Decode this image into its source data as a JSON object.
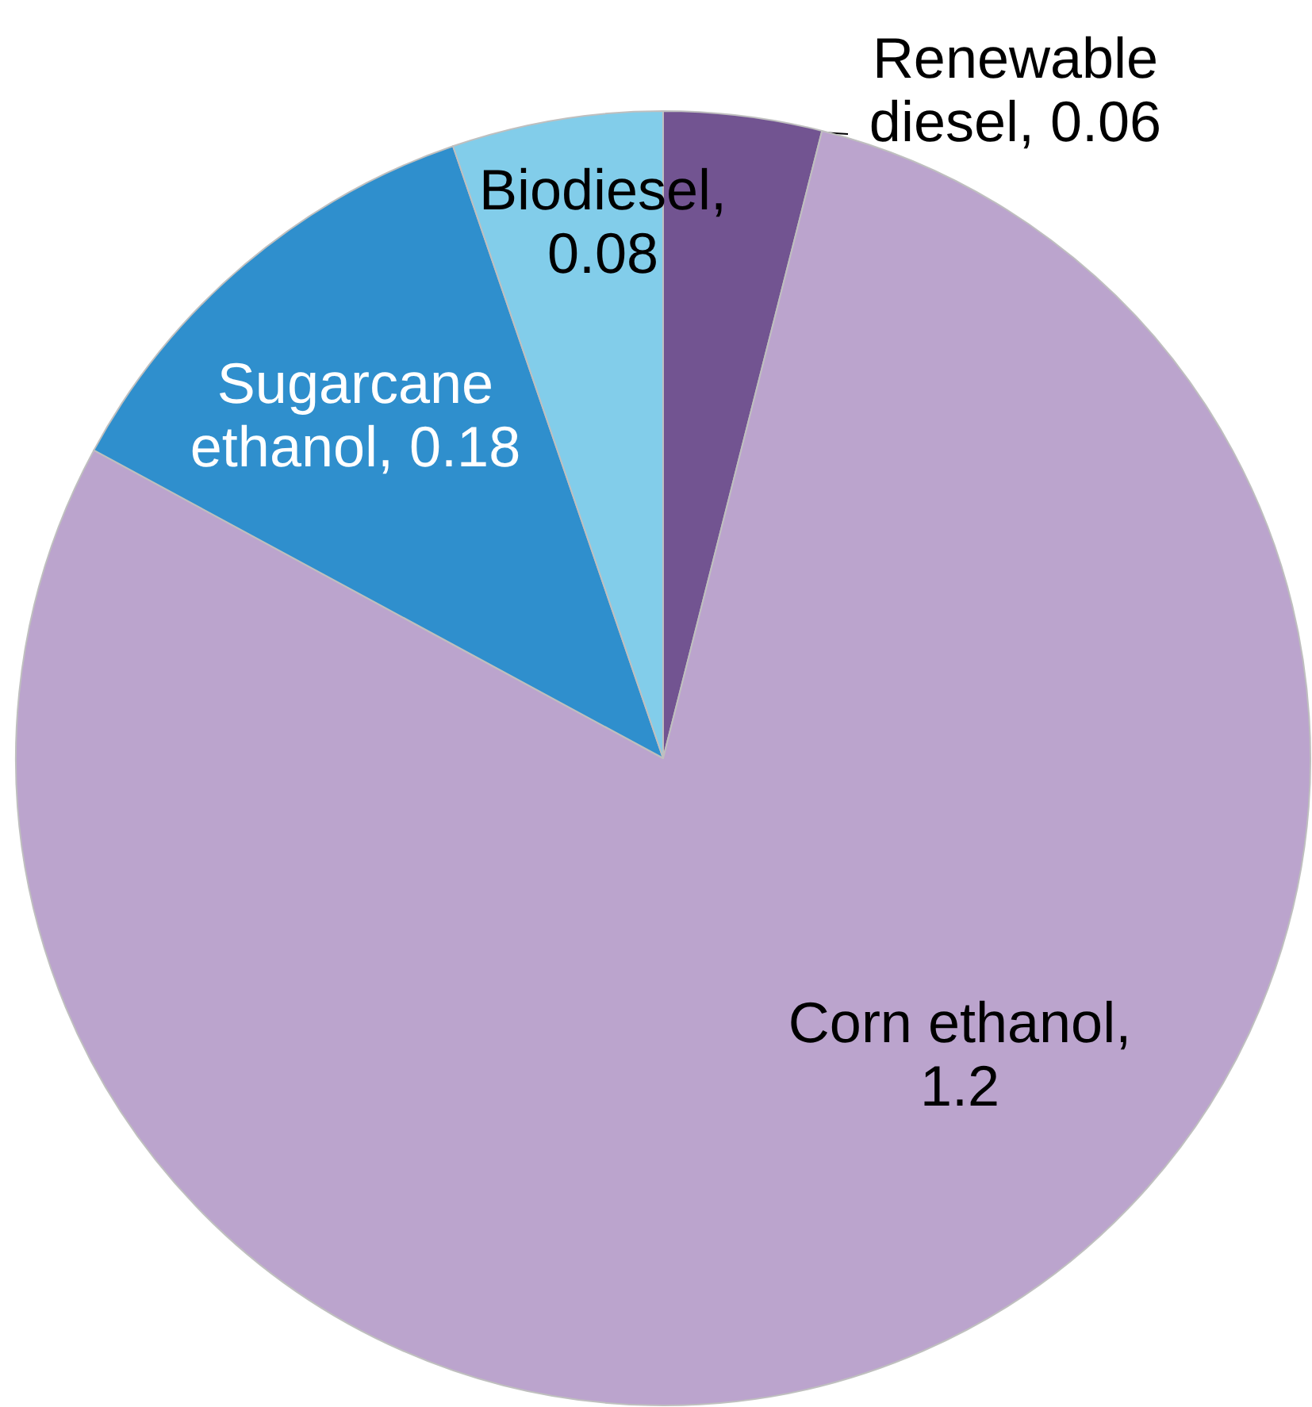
{
  "chart_data": {
    "type": "pie",
    "categories": [
      "Renewable diesel",
      "Corn ethanol",
      "Sugarcane ethanol",
      "Biodiesel"
    ],
    "values": [
      0.06,
      1.2,
      0.18,
      0.08
    ],
    "colors": [
      "#725491",
      "#bba4cd",
      "#2f8fcd",
      "#82cdea"
    ],
    "value_labels": [
      ", 0.06",
      ", 1.2",
      ", 0.18",
      ", 0.08"
    ]
  }
}
